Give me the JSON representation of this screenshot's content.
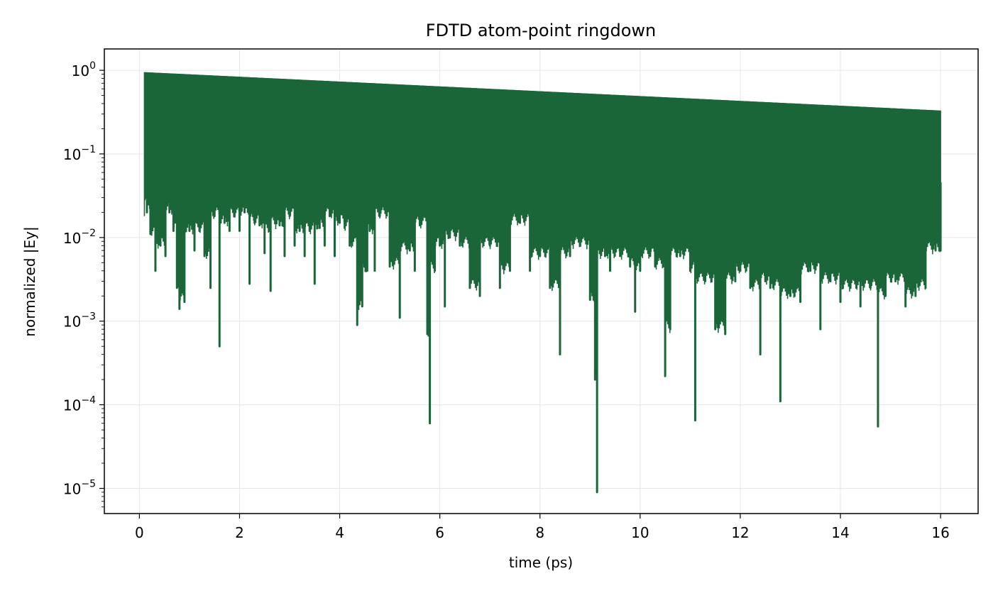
{
  "chart_data": {
    "type": "line",
    "title": "FDTD atom-point ringdown",
    "xlabel": "time (ps)",
    "ylabel": "normalized |Ey|",
    "xlim": [
      -0.7,
      16.75
    ],
    "ylim": [
      5e-06,
      1.8
    ],
    "yscale": "log",
    "grid": true,
    "x_ticks": [
      {
        "value": 0,
        "label": "0"
      },
      {
        "value": 2,
        "label": "2"
      },
      {
        "value": 4,
        "label": "4"
      },
      {
        "value": 6,
        "label": "6"
      },
      {
        "value": 8,
        "label": "8"
      },
      {
        "value": 10,
        "label": "10"
      },
      {
        "value": 12,
        "label": "12"
      },
      {
        "value": 14,
        "label": "14"
      },
      {
        "value": 16,
        "label": "16"
      }
    ],
    "y_ticks": [
      {
        "value": 1,
        "base": "10",
        "exp": "0"
      },
      {
        "value": 0.1,
        "base": "10",
        "exp": "−1"
      },
      {
        "value": 0.01,
        "base": "10",
        "exp": "−2"
      },
      {
        "value": 0.001,
        "base": "10",
        "exp": "−3"
      },
      {
        "value": 0.0001,
        "base": "10",
        "exp": "−4"
      },
      {
        "value": 1e-05,
        "base": "10",
        "exp": "−5"
      }
    ],
    "series": [
      {
        "color": "#1a6639",
        "t_start": 0.1,
        "t_end": 16.0,
        "peak_start": 0.95,
        "peak_end": 0.33,
        "baseline_minima": [
          [
            0.12,
            0.03
          ],
          [
            0.15,
            0.02
          ],
          [
            0.22,
            0.011
          ],
          [
            0.32,
            0.004
          ],
          [
            0.42,
            0.008
          ],
          [
            0.52,
            0.006
          ],
          [
            0.6,
            0.02
          ],
          [
            0.68,
            0.012
          ],
          [
            0.75,
            0.0025
          ],
          [
            0.8,
            0.0014
          ],
          [
            0.9,
            0.0017
          ],
          [
            1.0,
            0.012
          ],
          [
            1.1,
            0.007
          ],
          [
            1.2,
            0.012
          ],
          [
            1.3,
            0.006
          ],
          [
            1.42,
            0.0025
          ],
          [
            1.5,
            0.018
          ],
          [
            1.6,
            0.0005
          ],
          [
            1.7,
            0.015
          ],
          [
            1.8,
            0.012
          ],
          [
            1.9,
            0.018
          ],
          [
            2.0,
            0.012
          ],
          [
            2.1,
            0.02
          ],
          [
            2.2,
            0.0028
          ],
          [
            2.3,
            0.015
          ],
          [
            2.4,
            0.014
          ],
          [
            2.5,
            0.0065
          ],
          [
            2.6,
            0.012
          ],
          [
            2.62,
            0.0023
          ],
          [
            2.8,
            0.014
          ],
          [
            2.9,
            0.006
          ],
          [
            3.0,
            0.018
          ],
          [
            3.1,
            0.008
          ],
          [
            3.2,
            0.012
          ],
          [
            3.3,
            0.006
          ],
          [
            3.4,
            0.012
          ],
          [
            3.5,
            0.0028
          ],
          [
            3.6,
            0.013
          ],
          [
            3.7,
            0.008
          ],
          [
            3.8,
            0.018
          ],
          [
            3.9,
            0.006
          ],
          [
            4.0,
            0.015
          ],
          [
            4.1,
            0.013
          ],
          [
            4.2,
            0.008
          ],
          [
            4.35,
            0.0009
          ],
          [
            4.45,
            0.0015
          ],
          [
            4.55,
            0.004
          ],
          [
            4.6,
            0.012
          ],
          [
            4.7,
            0.004
          ],
          [
            4.8,
            0.018
          ],
          [
            5.0,
            0.0045
          ],
          [
            5.2,
            0.0011
          ],
          [
            5.4,
            0.007
          ],
          [
            5.5,
            0.004
          ],
          [
            5.6,
            0.014
          ],
          [
            5.75,
            0.0007
          ],
          [
            5.8,
            6e-05
          ],
          [
            5.9,
            0.004
          ],
          [
            6.0,
            0.008
          ],
          [
            6.1,
            0.0015
          ],
          [
            6.2,
            0.01
          ],
          [
            6.4,
            0.008
          ],
          [
            6.6,
            0.0025
          ],
          [
            6.8,
            0.002
          ],
          [
            7.0,
            0.008
          ],
          [
            7.2,
            0.0025
          ],
          [
            7.4,
            0.004
          ],
          [
            7.6,
            0.015
          ],
          [
            7.8,
            0.004
          ],
          [
            8.0,
            0.006
          ],
          [
            8.2,
            0.0025
          ],
          [
            8.4,
            0.0004
          ],
          [
            8.6,
            0.006
          ],
          [
            8.8,
            0.008
          ],
          [
            9.0,
            0.0018
          ],
          [
            9.1,
            0.0002
          ],
          [
            9.14,
            9e-06
          ],
          [
            9.3,
            0.006
          ],
          [
            9.4,
            0.004
          ],
          [
            9.6,
            0.006
          ],
          [
            9.8,
            0.0045
          ],
          [
            9.9,
            0.0013
          ],
          [
            10.0,
            0.004
          ],
          [
            10.2,
            0.006
          ],
          [
            10.3,
            0.0045
          ],
          [
            10.5,
            0.00022
          ],
          [
            10.6,
            0.0008
          ],
          [
            10.8,
            0.006
          ],
          [
            11.0,
            0.004
          ],
          [
            11.1,
            6.5e-05
          ],
          [
            11.3,
            0.003
          ],
          [
            11.5,
            0.0008
          ],
          [
            11.7,
            0.0007
          ],
          [
            11.9,
            0.003
          ],
          [
            12.0,
            0.004
          ],
          [
            12.2,
            0.0025
          ],
          [
            12.4,
            0.0004
          ],
          [
            12.5,
            0.003
          ],
          [
            12.6,
            0.0025
          ],
          [
            12.8,
            0.00011
          ],
          [
            13.0,
            0.002
          ],
          [
            13.2,
            0.0017
          ],
          [
            13.4,
            0.004
          ],
          [
            13.6,
            0.0008
          ],
          [
            13.8,
            0.003
          ],
          [
            14.0,
            0.0017
          ],
          [
            14.2,
            0.0025
          ],
          [
            14.4,
            0.0015
          ],
          [
            14.6,
            0.0025
          ],
          [
            14.75,
            5.5e-05
          ],
          [
            14.9,
            0.002
          ],
          [
            15.1,
            0.003
          ],
          [
            15.3,
            0.0015
          ],
          [
            15.5,
            0.002
          ],
          [
            15.7,
            0.0025
          ],
          [
            15.9,
            0.007
          ],
          [
            16.0,
            0.007
          ]
        ]
      }
    ]
  }
}
